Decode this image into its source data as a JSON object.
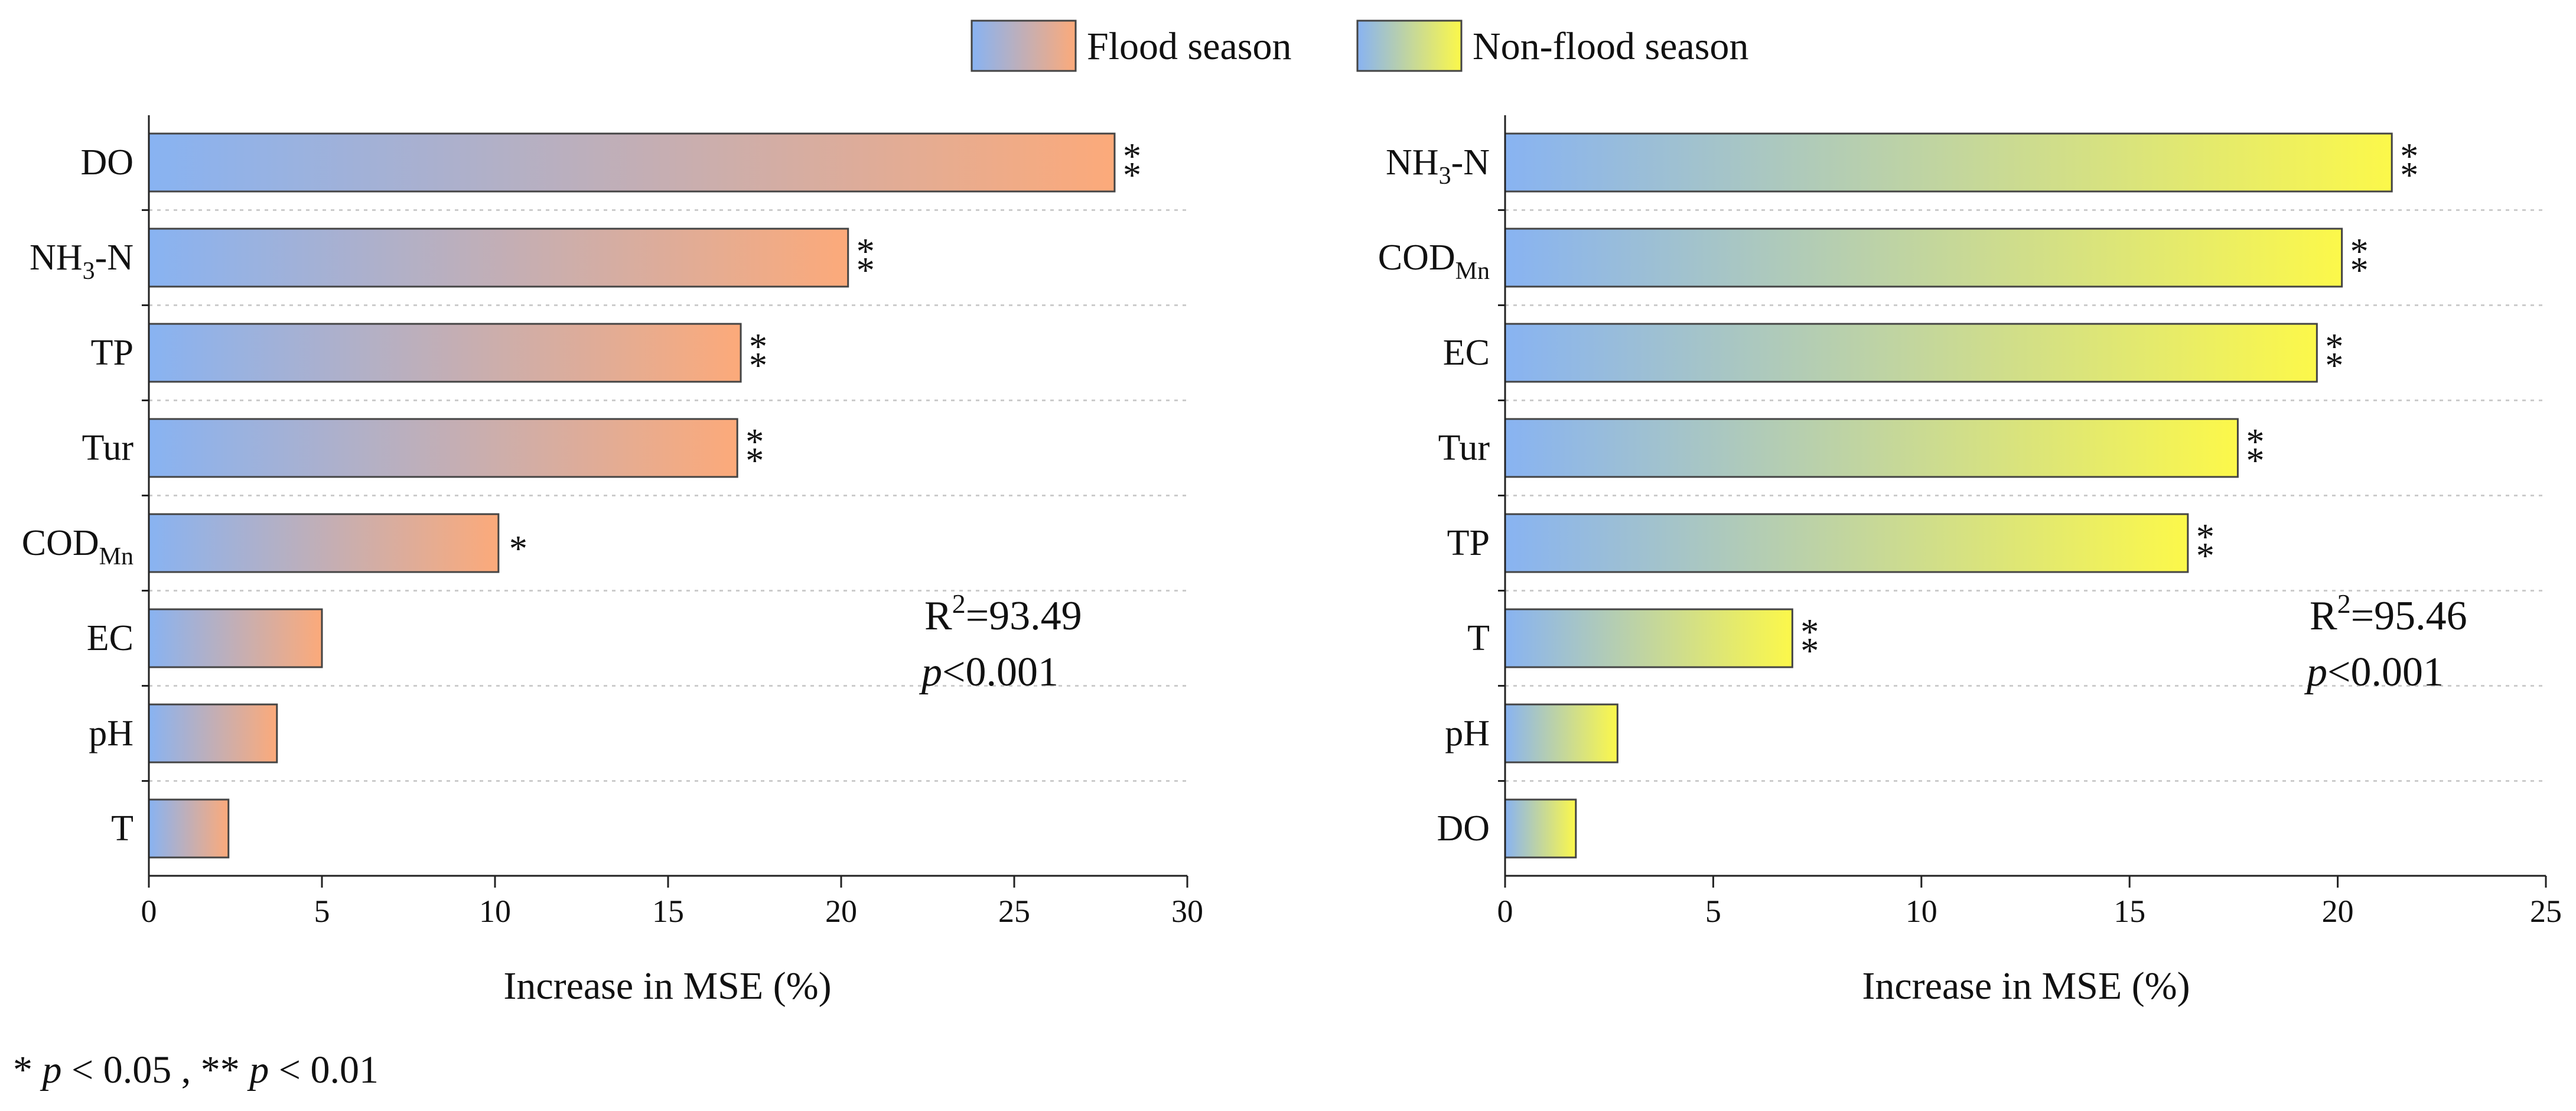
{
  "legend": {
    "flood_label": "Flood season",
    "nonflood_label": "Non-flood season"
  },
  "footnote": {
    "star1": "* ",
    "p1": "p",
    "rest1": " < 0.05 , ** ",
    "p2": "p",
    "rest2": " < 0.01"
  },
  "colors": {
    "flood_start": "#88b3f2",
    "flood_end": "#fcaa7a",
    "nonflood_start": "#88b3f2",
    "nonflood_end": "#fcf84a",
    "bar_stroke": "#444444",
    "gridline": "#cccccc"
  },
  "chart_data": [
    {
      "type": "bar",
      "orientation": "horizontal",
      "series_name": "Flood season",
      "categories": [
        {
          "main": "DO",
          "sub": "",
          "after": ""
        },
        {
          "main": "NH",
          "sub": "3",
          "after": "-N"
        },
        {
          "main": "TP",
          "sub": "",
          "after": ""
        },
        {
          "main": "Tur",
          "sub": "",
          "after": ""
        },
        {
          "main": "COD",
          "sub": "Mn",
          "after": ""
        },
        {
          "main": "EC",
          "sub": "",
          "after": ""
        },
        {
          "main": "pH",
          "sub": "",
          "after": ""
        },
        {
          "main": "T",
          "sub": "",
          "after": ""
        }
      ],
      "values": [
        27.9,
        20.2,
        17.1,
        17.0,
        10.1,
        5.0,
        3.7,
        2.3
      ],
      "significance": [
        "**",
        "**",
        "**",
        "**",
        "*",
        "",
        "",
        ""
      ],
      "xlim": [
        0,
        30
      ],
      "xticks": [
        0,
        5,
        10,
        15,
        20,
        25,
        30
      ],
      "xlabel": "Increase in MSE (%)",
      "r2_prefix": "R",
      "r2_sup": "2",
      "r2_value": "=93.49",
      "p_italic": "p",
      "p_value": "<0.001"
    },
    {
      "type": "bar",
      "orientation": "horizontal",
      "series_name": "Non-flood season",
      "categories": [
        {
          "main": "NH",
          "sub": "3",
          "after": "-N"
        },
        {
          "main": "COD",
          "sub": "Mn",
          "after": ""
        },
        {
          "main": "EC",
          "sub": "",
          "after": ""
        },
        {
          "main": "Tur",
          "sub": "",
          "after": ""
        },
        {
          "main": "TP",
          "sub": "",
          "after": ""
        },
        {
          "main": "T",
          "sub": "",
          "after": ""
        },
        {
          "main": "pH",
          "sub": "",
          "after": ""
        },
        {
          "main": "DO",
          "sub": "",
          "after": ""
        }
      ],
      "values": [
        21.3,
        20.1,
        19.5,
        17.6,
        16.4,
        6.9,
        2.7,
        1.7
      ],
      "significance": [
        "**",
        "**",
        "**",
        "**",
        "**",
        "**",
        "",
        ""
      ],
      "xlim": [
        0,
        25
      ],
      "xticks": [
        0,
        5,
        10,
        15,
        20,
        25
      ],
      "xlabel": "Increase in MSE (%)",
      "r2_prefix": "R",
      "r2_sup": "2",
      "r2_value": "=95.46",
      "p_italic": "p",
      "p_value": "<0.001"
    }
  ]
}
